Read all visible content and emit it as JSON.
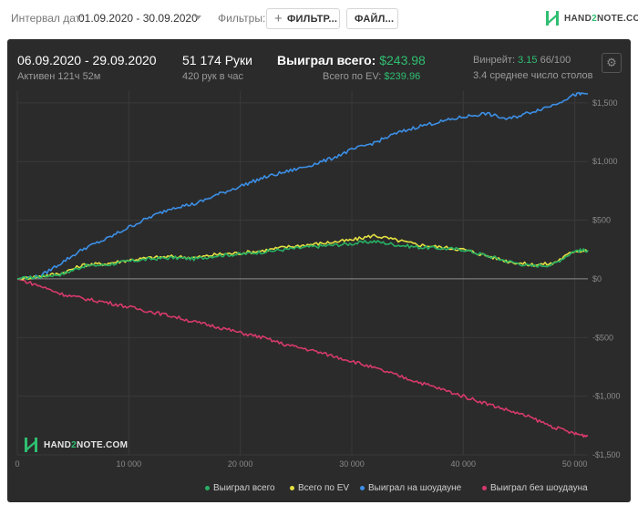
{
  "topbar": {
    "date_label": "Интервал дат:",
    "date_range": "01.09.2020 - 30.09.2020",
    "filters_label": "Фильтры:",
    "filter_button": "ФИЛЬТР...",
    "file_button": "ФАЙЛ...",
    "logo_text_a": "HAND",
    "logo_text_b": "2",
    "logo_text_c": "NOTE.COM"
  },
  "stats": {
    "period": "06.09.2020 - 29.09.2020",
    "active": "Активен 121ч 52м",
    "hands": "51 174 Руки",
    "hands_per_hour": "420 рук в час",
    "won_label": "Выиграл всего:",
    "won_value": "$243.98",
    "ev_label": "Всего по EV:",
    "ev_value": "$239.96",
    "winrate_label": "Винрейт:",
    "winrate_value": "3.15",
    "winrate_rest": "66/100",
    "tables": "3.4 среднее число столов"
  },
  "colors": {
    "won": "#27b063",
    "ev": "#e3e042",
    "showdown": "#3c8fe6",
    "nonshowdown": "#d63a6b",
    "accent": "#2fbf71"
  },
  "chart_data": {
    "type": "line",
    "xlim": [
      0,
      51174
    ],
    "ylim": [
      -1500,
      1600
    ],
    "x_ticks": [
      0,
      10000,
      20000,
      30000,
      40000,
      50000
    ],
    "x_tick_labels": [
      "0",
      "10 000",
      "20 000",
      "30 000",
      "40 000",
      "50 000"
    ],
    "y_ticks": [
      1500,
      1000,
      500,
      0,
      -500,
      -1000,
      -1500
    ],
    "y_tick_labels": [
      "$1,500",
      "$1,000",
      "$500",
      "$0",
      "-$500",
      "-$1,000",
      "-$1,500"
    ],
    "grid": true,
    "legend_position": "bottom-right",
    "watermark_a": "HAND",
    "watermark_b": "2",
    "watermark_c": "NOTE.COM",
    "x": [
      0,
      2000,
      4000,
      6000,
      8000,
      10000,
      12000,
      14000,
      16000,
      18000,
      20000,
      22000,
      24000,
      26000,
      28000,
      30000,
      32000,
      34000,
      36000,
      38000,
      40000,
      42000,
      44000,
      46000,
      48000,
      50000,
      51174
    ],
    "series": [
      {
        "name": "Выиграл всего",
        "color": "#27b063",
        "values": [
          0,
          20,
          40,
          110,
          120,
          150,
          170,
          180,
          170,
          200,
          210,
          230,
          250,
          270,
          285,
          300,
          320,
          290,
          270,
          260,
          250,
          200,
          150,
          110,
          120,
          240,
          244
        ]
      },
      {
        "name": "Всего по EV",
        "color": "#e3e042",
        "values": [
          0,
          20,
          50,
          120,
          130,
          160,
          180,
          190,
          180,
          210,
          220,
          240,
          270,
          290,
          310,
          330,
          370,
          330,
          290,
          270,
          250,
          200,
          150,
          120,
          130,
          240,
          240
        ]
      },
      {
        "name": "Выиграл на шоудауне",
        "color": "#3c8fe6",
        "values": [
          0,
          20,
          140,
          260,
          340,
          440,
          530,
          610,
          640,
          720,
          790,
          860,
          910,
          960,
          1020,
          1100,
          1160,
          1240,
          1300,
          1340,
          1380,
          1410,
          1360,
          1420,
          1480,
          1570,
          1580
        ]
      },
      {
        "name": "Выиграл без шоудауна",
        "color": "#d63a6b",
        "values": [
          0,
          -60,
          -130,
          -170,
          -200,
          -240,
          -280,
          -320,
          -370,
          -410,
          -460,
          -500,
          -560,
          -600,
          -650,
          -700,
          -760,
          -820,
          -880,
          -940,
          -1000,
          -1060,
          -1120,
          -1180,
          -1260,
          -1320,
          -1340
        ]
      }
    ]
  }
}
